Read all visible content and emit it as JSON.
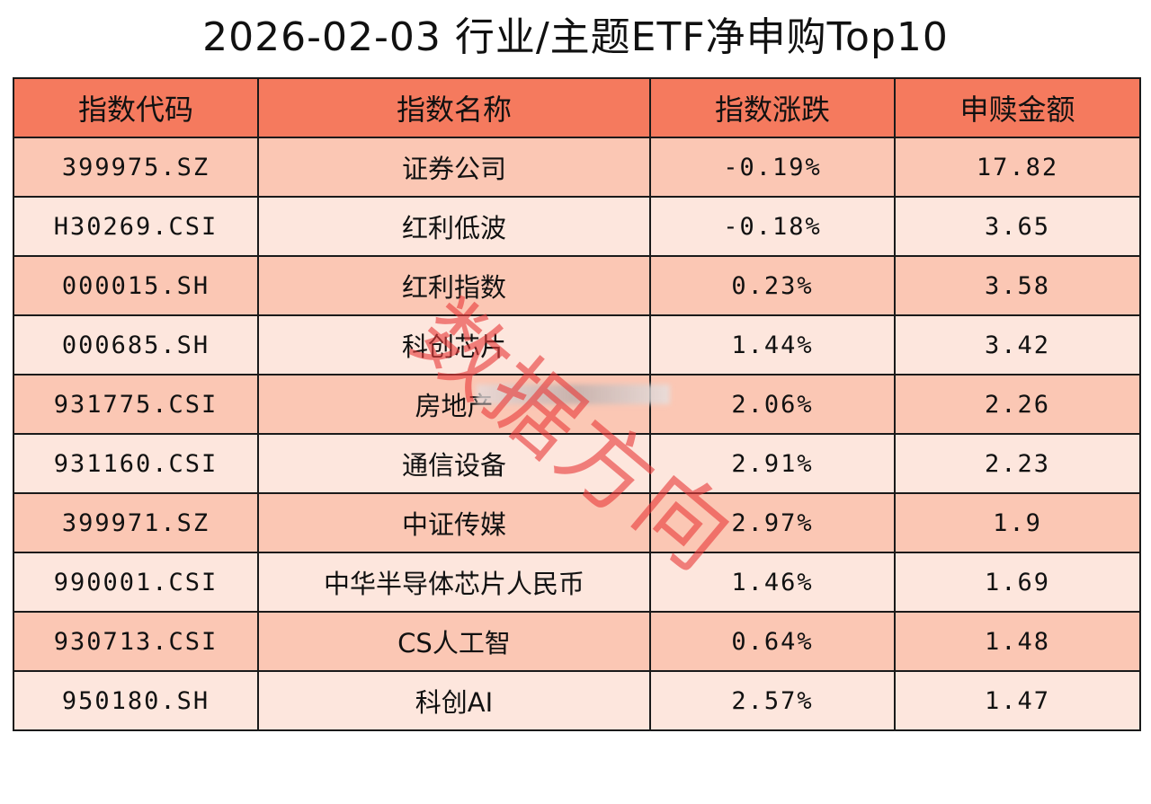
{
  "title": "2026-02-03 行业/主题ETF净申购Top10",
  "watermark": [
    "数",
    "据",
    "方",
    "向"
  ],
  "colors": {
    "header": "#f57a5e",
    "row_dark": "#fbc7b4",
    "row_light": "#fde6dd",
    "watermark": "#e83c3c"
  },
  "chart_data": {
    "type": "table",
    "title": "2026-02-03 行业/主题ETF净申购Top10",
    "columns": [
      "指数代码",
      "指数名称",
      "指数涨跌",
      "申赎金额"
    ],
    "rows": [
      [
        "399975.SZ",
        "证券公司",
        "-0.19%",
        "17.82"
      ],
      [
        "H30269.CSI",
        "红利低波",
        "-0.18%",
        "3.65"
      ],
      [
        "000015.SH",
        "红利指数",
        "0.23%",
        "3.58"
      ],
      [
        "000685.SH",
        "科创芯片",
        "1.44%",
        "3.42"
      ],
      [
        "931775.CSI",
        "房地产",
        "2.06%",
        "2.26"
      ],
      [
        "931160.CSI",
        "通信设备",
        "2.91%",
        "2.23"
      ],
      [
        "399971.SZ",
        "中证传媒",
        "2.97%",
        "1.9"
      ],
      [
        "990001.CSI",
        "中华半导体芯片人民币",
        "1.46%",
        "1.69"
      ],
      [
        "930713.CSI",
        "CS人工智",
        "0.64%",
        "1.48"
      ],
      [
        "950180.SH",
        "科创AI",
        "2.57%",
        "1.47"
      ]
    ]
  }
}
